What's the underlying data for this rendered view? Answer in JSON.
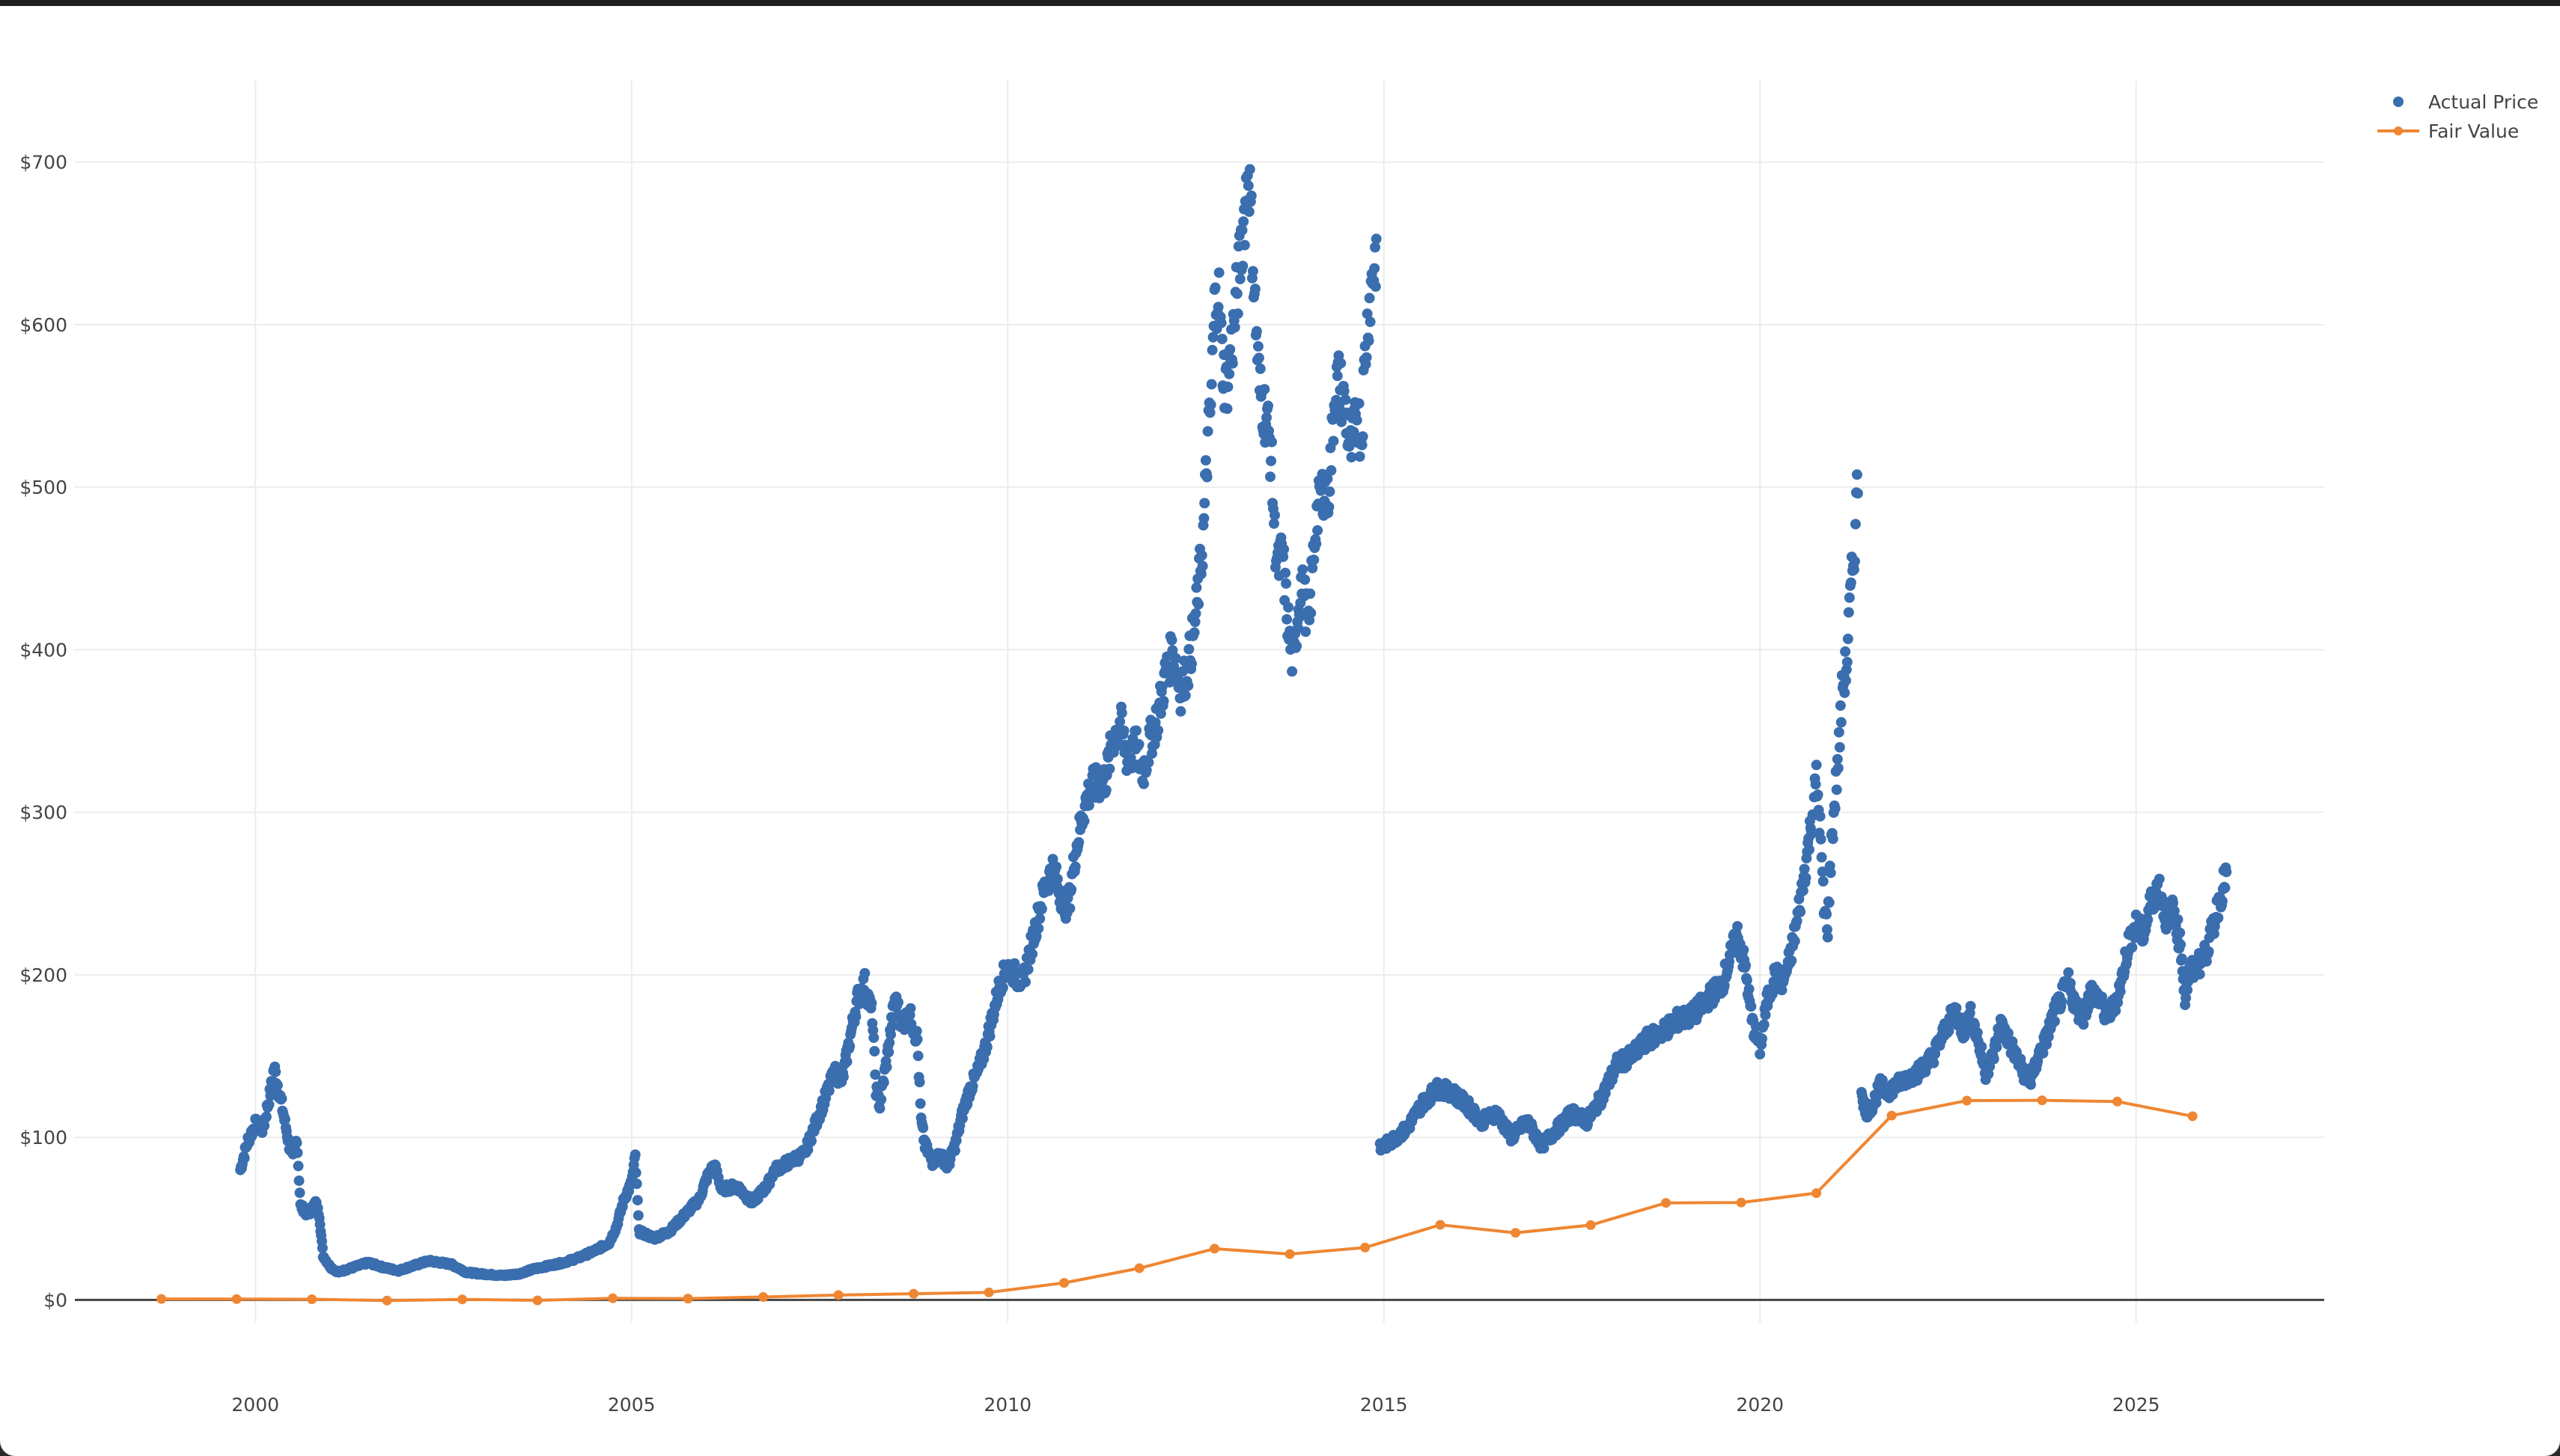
{
  "chart_data": {
    "type": "scatter",
    "title": "",
    "xlabel": "",
    "ylabel": "",
    "xlim": [
      1997.6,
      2027.5
    ],
    "ylim": [
      -50,
      750
    ],
    "x_ticks": [
      2000,
      2005,
      2010,
      2015,
      2020,
      2025
    ],
    "x_tick_labels": [
      "2000",
      "2005",
      "2010",
      "2015",
      "2020",
      "2025"
    ],
    "y_ticks": [
      0,
      100,
      200,
      300,
      400,
      500,
      600,
      700
    ],
    "y_tick_labels": [
      "$0",
      "$100",
      "$200",
      "$300",
      "$400",
      "$500",
      "$600",
      "$700"
    ],
    "grid": true,
    "legend_position": "top-right",
    "colors": {
      "actual": "#3a6eae",
      "fair": "#ef8632",
      "zero_line": "#444444",
      "grid": "#ececec"
    },
    "series": [
      {
        "name": "Actual Price",
        "mode": "markers",
        "color": "#3a6eae",
        "segments": [
          [
            [
              1999.8,
              80
            ],
            [
              1999.9,
              98
            ],
            [
              2000.0,
              108
            ],
            [
              2000.1,
              105
            ],
            [
              2000.2,
              128
            ],
            [
              2000.25,
              143
            ],
            [
              2000.35,
              120
            ],
            [
              2000.45,
              95
            ],
            [
              2000.5,
              87
            ],
            [
              2000.55,
              100
            ],
            [
              2000.6,
              58
            ],
            [
              2000.7,
              52
            ],
            [
              2000.8,
              60
            ],
            [
              2000.85,
              52
            ],
            [
              2000.9,
              27
            ],
            [
              2001.0,
              20
            ],
            [
              2001.1,
              17
            ],
            [
              2001.3,
              20
            ],
            [
              2001.5,
              23
            ],
            [
              2001.7,
              20
            ],
            [
              2001.9,
              18
            ],
            [
              2002.1,
              21
            ],
            [
              2002.3,
              24
            ],
            [
              2002.6,
              22
            ],
            [
              2002.8,
              17
            ],
            [
              2003.0,
              16
            ],
            [
              2003.3,
              15
            ],
            [
              2003.5,
              16
            ],
            [
              2003.7,
              19
            ],
            [
              2003.9,
              21
            ],
            [
              2004.1,
              23
            ],
            [
              2004.3,
              26
            ],
            [
              2004.5,
              30
            ],
            [
              2004.7,
              35
            ],
            [
              2004.8,
              45
            ],
            [
              2004.9,
              62
            ],
            [
              2005.0,
              72
            ],
            [
              2005.05,
              88
            ],
            [
              2005.1,
              42
            ],
            [
              2005.3,
              38
            ],
            [
              2005.5,
              42
            ],
            [
              2005.7,
              52
            ],
            [
              2005.9,
              62
            ],
            [
              2006.0,
              75
            ],
            [
              2006.1,
              83
            ],
            [
              2006.2,
              68
            ],
            [
              2006.4,
              70
            ],
            [
              2006.6,
              60
            ],
            [
              2006.8,
              70
            ],
            [
              2006.9,
              80
            ],
            [
              2007.1,
              85
            ],
            [
              2007.3,
              90
            ],
            [
              2007.5,
              115
            ],
            [
              2007.7,
              140
            ],
            [
              2007.8,
              135
            ],
            [
              2007.9,
              160
            ],
            [
              2008.0,
              185
            ],
            [
              2008.1,
              195
            ],
            [
              2008.2,
              175
            ],
            [
              2008.25,
              130
            ],
            [
              2008.3,
              120
            ],
            [
              2008.4,
              150
            ],
            [
              2008.5,
              185
            ],
            [
              2008.6,
              170
            ],
            [
              2008.7,
              175
            ],
            [
              2008.8,
              160
            ],
            [
              2008.85,
              110
            ],
            [
              2008.9,
              95
            ],
            [
              2009.0,
              85
            ],
            [
              2009.1,
              90
            ],
            [
              2009.2,
              82
            ],
            [
              2009.3,
              95
            ],
            [
              2009.4,
              115
            ],
            [
              2009.5,
              130
            ],
            [
              2009.6,
              140
            ],
            [
              2009.7,
              155
            ],
            [
              2009.8,
              175
            ],
            [
              2009.9,
              195
            ],
            [
              2010.0,
              205
            ],
            [
              2010.1,
              200
            ],
            [
              2010.2,
              195
            ],
            [
              2010.3,
              215
            ],
            [
              2010.4,
              235
            ],
            [
              2010.5,
              255
            ],
            [
              2010.6,
              265
            ],
            [
              2010.7,
              250
            ],
            [
              2010.8,
              240
            ],
            [
              2010.9,
              275
            ],
            [
              2011.0,
              300
            ],
            [
              2011.1,
              315
            ],
            [
              2011.3,
              320
            ],
            [
              2011.4,
              345
            ],
            [
              2011.5,
              355
            ],
            [
              2011.6,
              330
            ],
            [
              2011.7,
              340
            ],
            [
              2011.8,
              325
            ],
            [
              2011.9,
              345
            ],
            [
              2012.0,
              360
            ],
            [
              2012.1,
              385
            ],
            [
              2012.2,
              400
            ],
            [
              2012.3,
              375
            ],
            [
              2012.4,
              390
            ],
            [
              2012.5,
              420
            ],
            [
              2012.6,
              470
            ],
            [
              2012.65,
              520
            ],
            [
              2012.7,
              550
            ],
            [
              2012.75,
              610
            ],
            [
              2012.8,
              625
            ],
            [
              2012.85,
              580
            ],
            [
              2012.9,
              560
            ],
            [
              2013.0,
              595
            ],
            [
              2013.05,
              620
            ],
            [
              2013.1,
              645
            ],
            [
              2013.15,
              670
            ],
            [
              2013.2,
              700
            ],
            [
              2013.25,
              650
            ],
            [
              2013.3,
              600
            ],
            [
              2013.35,
              560
            ],
            [
              2013.45,
              540
            ],
            [
              2013.5,
              520
            ],
            [
              2013.55,
              470
            ],
            [
              2013.6,
              450
            ],
            [
              2013.65,
              460
            ],
            [
              2013.7,
              430
            ],
            [
              2013.75,
              405
            ],
            [
              2013.8,
              390
            ],
            [
              2013.85,
              420
            ],
            [
              2013.9,
              440
            ],
            [
              2013.95,
              430
            ],
            [
              2014.0,
              410
            ],
            [
              2014.05,
              450
            ],
            [
              2014.1,
              480
            ],
            [
              2014.2,
              500
            ],
            [
              2014.25,
              490
            ],
            [
              2014.3,
              520
            ],
            [
              2014.35,
              560
            ],
            [
              2014.4,
              565
            ],
            [
              2014.5,
              545
            ],
            [
              2014.55,
              520
            ],
            [
              2014.6,
              530
            ],
            [
              2014.65,
              545
            ],
            [
              2014.7,
              530
            ],
            [
              2014.75,
              580
            ],
            [
              2014.8,
              610
            ],
            [
              2014.85,
              630
            ],
            [
              2014.9,
              645
            ]
          ],
          [
            [
              2014.95,
              93
            ],
            [
              2015.1,
              98
            ],
            [
              2015.3,
              105
            ],
            [
              2015.5,
              120
            ],
            [
              2015.7,
              130
            ],
            [
              2015.9,
              128
            ],
            [
              2016.1,
              120
            ],
            [
              2016.3,
              110
            ],
            [
              2016.5,
              115
            ],
            [
              2016.7,
              100
            ],
            [
              2016.9,
              110
            ],
            [
              2017.1,
              95
            ],
            [
              2017.3,
              105
            ],
            [
              2017.5,
              115
            ],
            [
              2017.7,
              110
            ],
            [
              2017.9,
              125
            ],
            [
              2018.1,
              145
            ],
            [
              2018.3,
              150
            ],
            [
              2018.5,
              160
            ],
            [
              2018.7,
              165
            ],
            [
              2018.9,
              172
            ],
            [
              2019.1,
              175
            ],
            [
              2019.3,
              185
            ],
            [
              2019.5,
              195
            ],
            [
              2019.6,
              210
            ],
            [
              2019.7,
              225
            ],
            [
              2019.8,
              205
            ],
            [
              2019.9,
              170
            ],
            [
              2020.0,
              155
            ],
            [
              2020.1,
              185
            ],
            [
              2020.2,
              200
            ],
            [
              2020.3,
              195
            ],
            [
              2020.4,
              210
            ],
            [
              2020.5,
              235
            ],
            [
              2020.6,
              265
            ],
            [
              2020.7,
              300
            ],
            [
              2020.75,
              320
            ],
            [
              2020.8,
              290
            ],
            [
              2020.85,
              240
            ],
            [
              2020.9,
              230
            ],
            [
              2020.95,
              280
            ],
            [
              2021.0,
              310
            ],
            [
              2021.05,
              340
            ],
            [
              2021.1,
              380
            ],
            [
              2021.15,
              390
            ],
            [
              2021.2,
              430
            ],
            [
              2021.25,
              460
            ],
            [
              2021.3,
              505
            ]
          ],
          [
            [
              2021.35,
              130
            ],
            [
              2021.4,
              115
            ],
            [
              2021.5,
              120
            ],
            [
              2021.6,
              132
            ],
            [
              2021.7,
              128
            ],
            [
              2021.9,
              135
            ],
            [
              2022.1,
              140
            ],
            [
              2022.3,
              150
            ],
            [
              2022.5,
              170
            ],
            [
              2022.6,
              178
            ],
            [
              2022.7,
              165
            ],
            [
              2022.8,
              175
            ],
            [
              2022.9,
              160
            ],
            [
              2023.0,
              140
            ],
            [
              2023.1,
              150
            ],
            [
              2023.2,
              170
            ],
            [
              2023.3,
              160
            ],
            [
              2023.4,
              150
            ],
            [
              2023.5,
              140
            ],
            [
              2023.6,
              135
            ],
            [
              2023.7,
              150
            ],
            [
              2023.8,
              160
            ],
            [
              2023.9,
              175
            ],
            [
              2024.0,
              185
            ],
            [
              2024.1,
              195
            ],
            [
              2024.2,
              180
            ],
            [
              2024.3,
              175
            ],
            [
              2024.4,
              190
            ],
            [
              2024.5,
              185
            ],
            [
              2024.6,
              175
            ],
            [
              2024.7,
              180
            ],
            [
              2024.8,
              195
            ],
            [
              2024.9,
              220
            ],
            [
              2025.0,
              230
            ],
            [
              2025.1,
              225
            ],
            [
              2025.2,
              245
            ],
            [
              2025.3,
              255
            ],
            [
              2025.4,
              235
            ],
            [
              2025.5,
              240
            ],
            [
              2025.6,
              215
            ],
            [
              2025.65,
              185
            ],
            [
              2025.7,
              200
            ],
            [
              2025.8,
              205
            ],
            [
              2025.9,
              210
            ],
            [
              2026.0,
              225
            ],
            [
              2026.1,
              245
            ],
            [
              2026.2,
              262
            ]
          ]
        ]
      },
      {
        "name": "Fair Value",
        "mode": "lines+markers",
        "color": "#ef8632",
        "x": [
          1998.75,
          1999.75,
          2000.75,
          2001.75,
          2002.75,
          2003.75,
          2004.75,
          2005.75,
          2006.75,
          2007.75,
          2008.75,
          2009.75,
          2010.75,
          2011.75,
          2012.75,
          2013.75,
          2014.75,
          2015.75,
          2016.75,
          2017.75,
          2018.75,
          2019.75,
          2020.75,
          2021.75,
          2022.75,
          2023.75,
          2024.75,
          2025.75
        ],
        "y": [
          0.6,
          0.5,
          0.4,
          -0.4,
          0.3,
          -0.3,
          1.0,
          0.8,
          1.8,
          3.0,
          3.8,
          4.6,
          10.5,
          19.5,
          31.5,
          28.2,
          32.2,
          46.2,
          41.3,
          46.0,
          59.7,
          59.9,
          65.7,
          113.4,
          122.6,
          122.8,
          122.0,
          113.0
        ]
      }
    ]
  }
}
